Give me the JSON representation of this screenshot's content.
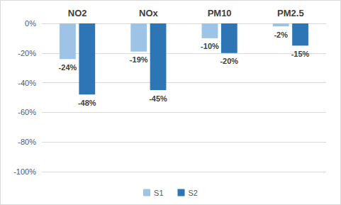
{
  "chart_data": {
    "type": "bar",
    "categories": [
      "NO2",
      "NOx",
      "PM10",
      "PM2.5"
    ],
    "series": [
      {
        "name": "S1",
        "color": "#9dc3e6",
        "values": [
          -24,
          -19,
          -10,
          -2
        ],
        "value_labels": [
          "-24%",
          "-19%",
          "-10%",
          "-2%"
        ]
      },
      {
        "name": "S2",
        "color": "#2e75b6",
        "values": [
          -48,
          -45,
          -20,
          -15
        ],
        "value_labels": [
          "-48%",
          "-45%",
          "-20%",
          "-15%"
        ]
      }
    ],
    "ylim": [
      -100,
      0
    ],
    "yticks": [
      {
        "value": -100,
        "label": "-100%"
      },
      {
        "value": -80,
        "label": "-80%"
      },
      {
        "value": -60,
        "label": "-60%"
      },
      {
        "value": -40,
        "label": "-40%"
      },
      {
        "value": -20,
        "label": "-20%"
      },
      {
        "value": 0,
        "label": "0%"
      }
    ],
    "grid": true,
    "legend": "bottom",
    "data_labels": true
  }
}
